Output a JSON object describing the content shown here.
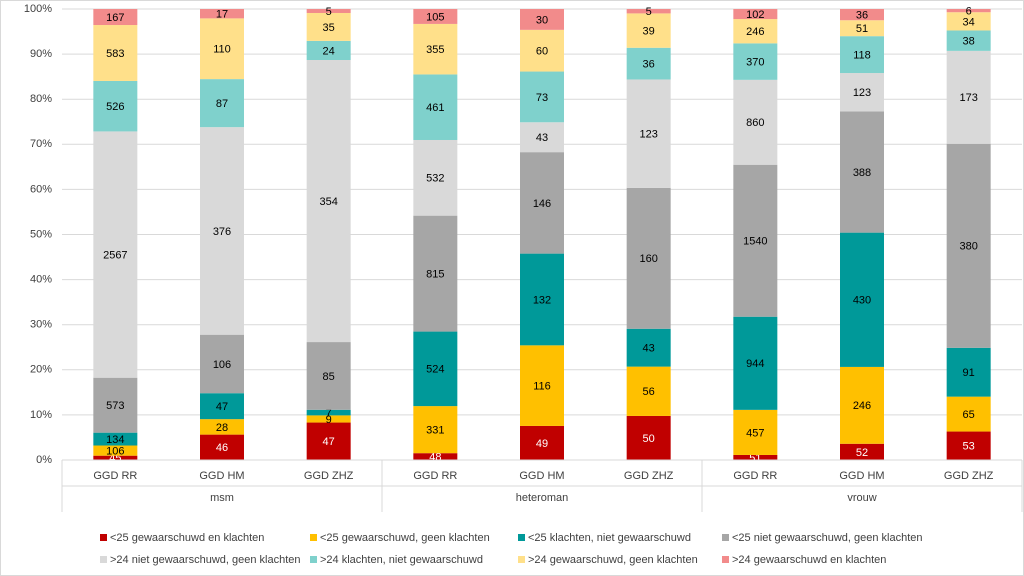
{
  "chart_data": {
    "type": "stacked_percent_bar",
    "groups": [
      {
        "name": "msm",
        "categories": [
          "GGD RR",
          "GGD HM",
          "GGD ZHZ"
        ]
      },
      {
        "name": "heteroman",
        "categories": [
          "GGD RR",
          "GGD HM",
          "GGD ZHZ"
        ]
      },
      {
        "name": "vrouw",
        "categories": [
          "GGD RR",
          "GGD HM",
          "GGD ZHZ"
        ]
      }
    ],
    "series": [
      {
        "name": "<25 gewaarschuwd en klachten",
        "color": "#c00000",
        "values": [
          45,
          46,
          47,
          48,
          49,
          50,
          51,
          52,
          53
        ]
      },
      {
        "name": "<25 gewaarschuwd, geen klachten",
        "color": "#ffc000",
        "values": [
          106,
          28,
          9,
          331,
          116,
          56,
          457,
          246,
          65
        ]
      },
      {
        "name": "<25 klachten, niet gewaarschuwd",
        "color": "#009999",
        "values": [
          134,
          47,
          7,
          524,
          132,
          43,
          944,
          430,
          91
        ]
      },
      {
        "name": "<25 niet gewaarschuwd, geen klachten",
        "color": "#a6a6a6",
        "values": [
          573,
          106,
          85,
          815,
          146,
          160,
          1540,
          388,
          380
        ]
      },
      {
        "name": ">24 niet gewaarschuwd, geen klachten",
        "color": "#d9d9d9",
        "values": [
          2567,
          376,
          354,
          532,
          43,
          123,
          860,
          123,
          173
        ]
      },
      {
        "name": ">24 klachten, niet gewaarschuwd",
        "color": "#7fd1cc",
        "values": [
          526,
          87,
          24,
          461,
          73,
          36,
          370,
          118,
          38
        ]
      },
      {
        "name": ">24 gewaarschuwd, geen klachten",
        "color": "#ffe08a",
        "values": [
          583,
          110,
          35,
          355,
          60,
          39,
          246,
          51,
          34
        ]
      },
      {
        "name": ">24 gewaarschuwd en klachten",
        "color": "#f28b8b",
        "values": [
          167,
          17,
          5,
          105,
          30,
          5,
          102,
          36,
          6
        ]
      }
    ],
    "ylim": [
      0,
      100
    ],
    "yticks": [
      {
        "value": 0,
        "label": "0%"
      },
      {
        "value": 10,
        "label": "10%"
      },
      {
        "value": 20,
        "label": "20%"
      },
      {
        "value": 30,
        "label": "30%"
      },
      {
        "value": 40,
        "label": "40%"
      },
      {
        "value": 50,
        "label": "50%"
      },
      {
        "value": 60,
        "label": "60%"
      },
      {
        "value": 70,
        "label": "70%"
      },
      {
        "value": 80,
        "label": "80%"
      },
      {
        "value": 90,
        "label": "90%"
      },
      {
        "value": 100,
        "label": "100%"
      }
    ],
    "grid": true,
    "legend": "bottom"
  }
}
